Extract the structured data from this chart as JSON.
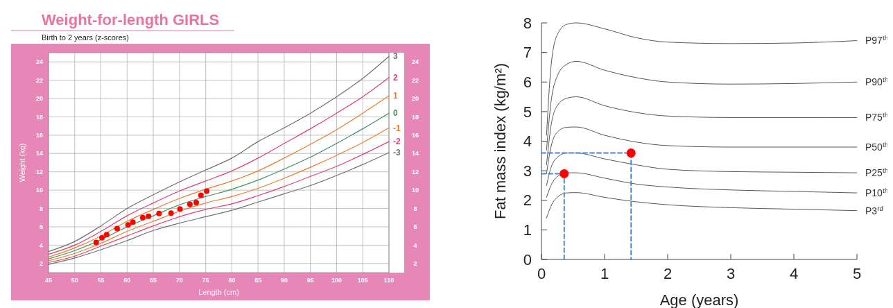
{
  "chart_data": [
    {
      "type": "line",
      "title": "Weight-for-length GIRLS",
      "subtitle": "Birth to 2 years (z-scores)",
      "xlabel": "Length (cm)",
      "ylabel": "Weight (kg)",
      "x": [
        45,
        50,
        55,
        60,
        65,
        70,
        75,
        80,
        85,
        90,
        95,
        100,
        105,
        110
      ],
      "xlim": [
        45,
        110
      ],
      "xticks": [
        45,
        50,
        55,
        60,
        65,
        70,
        75,
        80,
        85,
        90,
        95,
        100,
        105,
        110
      ],
      "ylim": [
        1,
        25
      ],
      "yticks": [
        2,
        4,
        6,
        8,
        10,
        12,
        14,
        16,
        18,
        20,
        22,
        24
      ],
      "y2lim": [
        1,
        25
      ],
      "y2ticks": [
        2,
        4,
        6,
        8,
        10,
        12,
        14,
        16,
        18,
        20,
        22,
        24
      ],
      "grid": true,
      "marker": "none",
      "line_style": "solid",
      "series": [
        {
          "name": "3",
          "color": "#707070",
          "values": [
            3.3,
            4.4,
            6.1,
            8.0,
            9.5,
            10.9,
            12.2,
            13.5,
            15.3,
            16.8,
            18.4,
            20.2,
            22.2,
            24.6
          ]
        },
        {
          "name": "2",
          "color": "#e0406a",
          "values": [
            3.0,
            4.0,
            5.5,
            7.2,
            8.6,
            9.9,
            11.0,
            12.1,
            13.5,
            15.1,
            16.7,
            18.4,
            20.2,
            22.3
          ]
        },
        {
          "name": "1",
          "color": "#e87d2c",
          "values": [
            2.7,
            3.7,
            5.0,
            6.6,
            7.9,
            9.1,
            10.1,
            11.0,
            12.1,
            13.5,
            15.0,
            16.6,
            18.4,
            20.3
          ]
        },
        {
          "name": "0",
          "color": "#3f8f60",
          "values": [
            2.5,
            3.4,
            4.6,
            6.0,
            7.2,
            8.4,
            9.3,
            10.1,
            11.1,
            12.3,
            13.6,
            15.1,
            16.7,
            18.4
          ]
        },
        {
          "name": "-1",
          "color": "#e87d2c",
          "values": [
            2.3,
            3.1,
            4.2,
            5.5,
            6.6,
            7.7,
            8.6,
            9.3,
            10.2,
            11.3,
            12.5,
            13.8,
            15.2,
            16.8
          ]
        },
        {
          "name": "-2",
          "color": "#e0406a",
          "values": [
            2.1,
            2.8,
            3.9,
            5.0,
            6.1,
            7.1,
            7.9,
            8.5,
            9.4,
            10.4,
            11.5,
            12.6,
            13.9,
            15.3
          ]
        },
        {
          "name": "-3",
          "color": "#707070",
          "values": [
            1.9,
            2.6,
            3.5,
            4.5,
            5.6,
            6.4,
            7.1,
            7.8,
            8.7,
            9.6,
            10.5,
            11.6,
            12.8,
            14.1
          ]
        },
        {
          "type": "scatter",
          "marker": "circle",
          "color": "#ff0000",
          "x": [
            54.1,
            55.2,
            56.1,
            58.1,
            60.2,
            61.1,
            63.0,
            64.1,
            66.1,
            68.4,
            70.1,
            72.0,
            73.2,
            74.1,
            75.2
          ],
          "values": [
            4.3,
            4.8,
            5.15,
            5.8,
            6.2,
            6.5,
            7.0,
            7.15,
            7.45,
            7.5,
            7.95,
            8.45,
            8.65,
            9.45,
            9.9
          ]
        }
      ]
    },
    {
      "type": "line",
      "xlabel": "Age (years)",
      "ylabel": "Fat mass index (kg/m²)",
      "x": [
        0.08,
        0.15,
        0.25,
        0.4,
        0.55,
        1,
        1.5,
        2,
        3,
        4,
        5
      ],
      "xlim": [
        0,
        5
      ],
      "xticks": [
        0,
        1,
        2,
        3,
        4,
        5
      ],
      "ylim": [
        0,
        8
      ],
      "yticks": [
        0,
        1,
        2,
        3,
        4,
        5,
        6,
        7,
        8
      ],
      "grid": false,
      "marker": "none",
      "line_style": "solid",
      "series": [
        {
          "name": "P97$^{th}$",
          "color": "#555555",
          "values": [
            4.2,
            6.5,
            7.6,
            7.95,
            8.0,
            7.8,
            7.5,
            7.35,
            7.3,
            7.32,
            7.4
          ]
        },
        {
          "name": "P90$^{th}$",
          "color": "#555555",
          "values": [
            3.7,
            5.3,
            6.2,
            6.6,
            6.7,
            6.4,
            6.15,
            6.0,
            5.93,
            5.95,
            6.0
          ]
        },
        {
          "name": "P75$^{th}$",
          "color": "#555555",
          "values": [
            3.2,
            4.5,
            5.2,
            5.45,
            5.5,
            5.2,
            4.97,
            4.85,
            4.8,
            4.8,
            4.8
          ]
        },
        {
          "name": "P50$^{th}$",
          "color": "#555555",
          "values": [
            2.9,
            3.8,
            4.3,
            4.47,
            4.48,
            4.2,
            3.97,
            3.85,
            3.8,
            3.8,
            3.8
          ]
        },
        {
          "name": "P25$^{th}$",
          "color": "#555555",
          "values": [
            2.5,
            3.1,
            3.45,
            3.6,
            3.6,
            3.4,
            3.2,
            3.05,
            2.97,
            2.95,
            2.93
          ]
        },
        {
          "name": "P10$^{th}$",
          "color": "#555555",
          "values": [
            2.1,
            2.5,
            2.8,
            2.93,
            2.93,
            2.75,
            2.55,
            2.45,
            2.35,
            2.3,
            2.25
          ]
        },
        {
          "name": "P3$^{rd}$",
          "color": "#555555",
          "values": [
            1.4,
            1.8,
            2.1,
            2.25,
            2.26,
            2.1,
            1.95,
            1.85,
            1.75,
            1.7,
            1.65
          ]
        },
        {
          "type": "line",
          "line_style": "dashed",
          "color": "#4f86c6",
          "x": [
            0,
            0.36,
            0.36
          ],
          "values": [
            2.9,
            2.9,
            0
          ]
        },
        {
          "type": "line",
          "line_style": "dashed",
          "color": "#4f86c6",
          "x": [
            0,
            1.42,
            1.42
          ],
          "values": [
            3.6,
            3.6,
            0
          ]
        },
        {
          "type": "scatter",
          "marker": "circle",
          "color": "#ff0000",
          "x": [
            0.36,
            1.42
          ],
          "values": [
            2.9,
            3.6
          ]
        }
      ]
    }
  ]
}
